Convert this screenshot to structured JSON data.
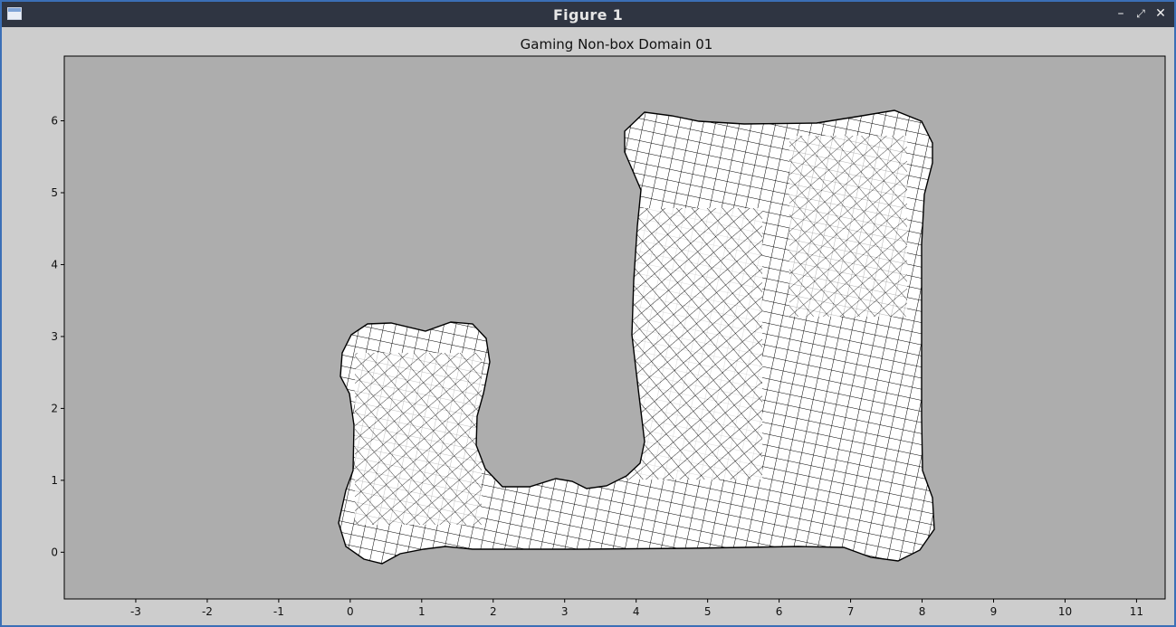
{
  "window": {
    "title": "Figure 1",
    "icon": "app-window-icon",
    "buttons": {
      "minimize": "–",
      "maximize": "⤢",
      "close": "✕"
    }
  },
  "plot": {
    "title": "Gaming Non-box Domain 01",
    "background": "#adadad",
    "mesh_fill": "#ffffff",
    "mesh_stroke": "#000000",
    "xlim": [
      -4,
      11.4
    ],
    "ylim": [
      -0.65,
      6.9
    ],
    "xticks": [
      "-3",
      "-2",
      "-1",
      "0",
      "1",
      "2",
      "3",
      "4",
      "5",
      "6",
      "7",
      "8",
      "9",
      "10",
      "11"
    ],
    "yticks": [
      "0",
      "1",
      "2",
      "3",
      "4",
      "5",
      "6"
    ]
  }
}
